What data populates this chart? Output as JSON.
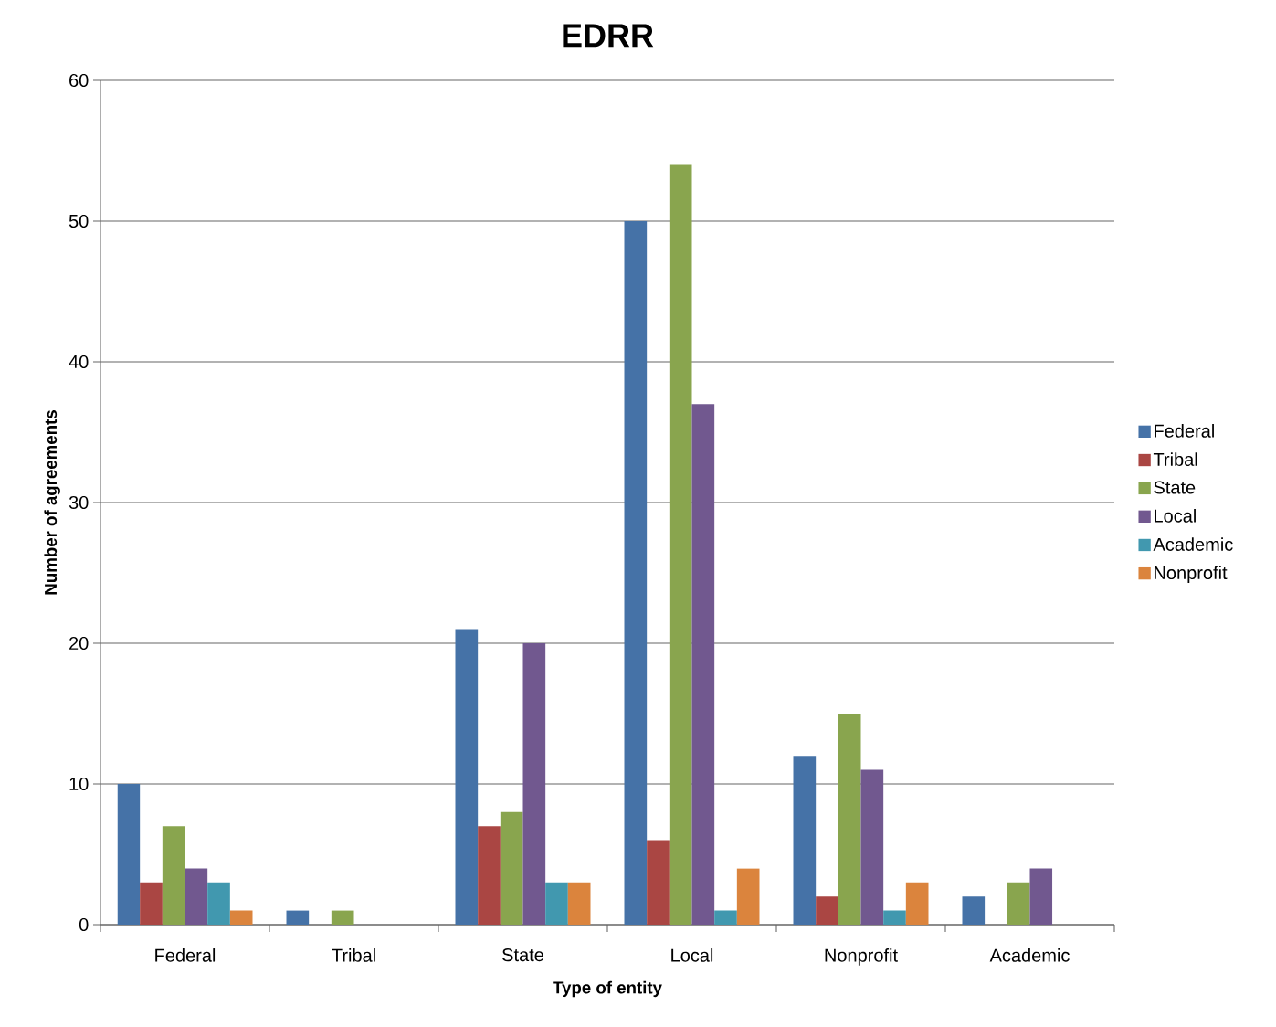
{
  "chart_data": {
    "type": "bar",
    "title": "EDRR",
    "xlabel": "Type of entity",
    "ylabel": "Number of agreements",
    "categories": [
      "Federal",
      "Tribal",
      "State",
      "Local",
      "Nonprofit",
      "Academic"
    ],
    "series": [
      {
        "name": "Federal",
        "color": "#4572a7",
        "values": [
          10,
          1,
          21,
          50,
          12,
          2
        ]
      },
      {
        "name": "Tribal",
        "color": "#aa4643",
        "values": [
          3,
          0,
          7,
          6,
          2,
          0
        ]
      },
      {
        "name": "State",
        "color": "#89a54e",
        "values": [
          7,
          1,
          8,
          54,
          15,
          3
        ]
      },
      {
        "name": "Local",
        "color": "#71588f",
        "values": [
          4,
          0,
          20,
          37,
          11,
          4
        ]
      },
      {
        "name": "Academic",
        "color": "#4198af",
        "values": [
          3,
          0,
          3,
          1,
          1,
          0
        ]
      },
      {
        "name": "Nonprofit",
        "color": "#db843d",
        "values": [
          1,
          0,
          3,
          4,
          3,
          0
        ]
      }
    ],
    "ylim": [
      0,
      60
    ],
    "yticks": [
      0,
      10,
      20,
      30,
      40,
      50,
      60
    ],
    "grid": "y",
    "legend": "right"
  }
}
